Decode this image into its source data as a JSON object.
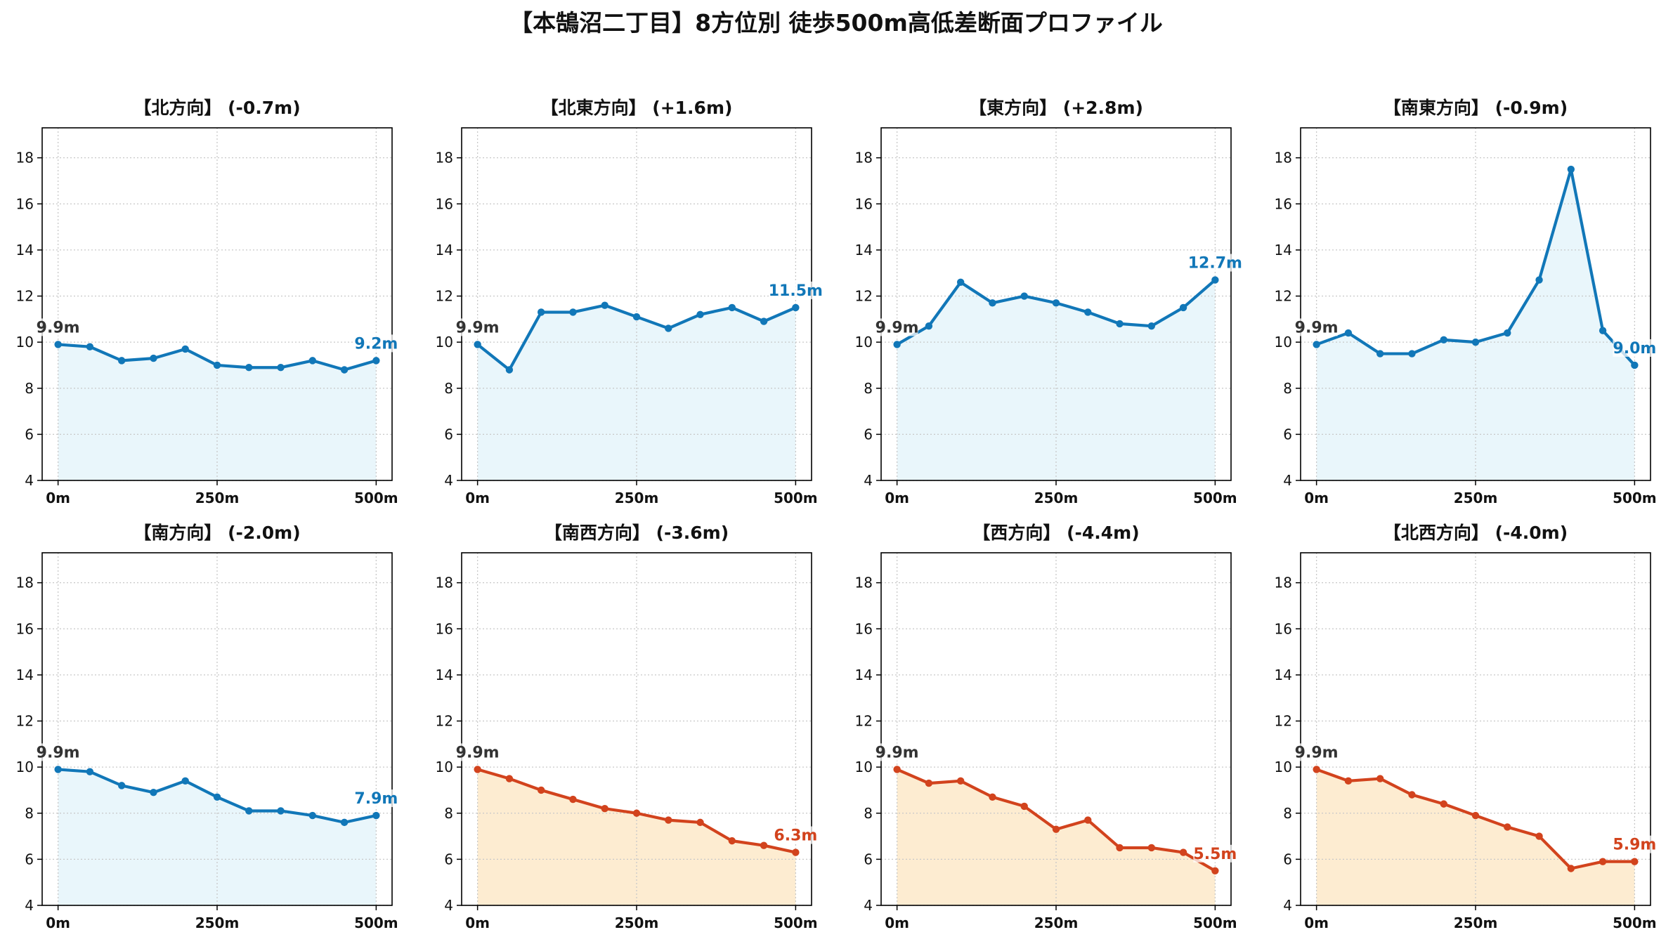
{
  "page_title": "【本鵠沼二丁目】8方位別 徒歩500m高低差断面プロファイル",
  "colors": {
    "up_line": "#1177b8",
    "up_fill": "#e9f6fb",
    "down_line": "#d2431d",
    "down_fill": "#fdecd1",
    "start_label": "#333333"
  },
  "chart_data": [
    {
      "type": "area",
      "title": "【北方向】 (-0.7m)",
      "trend": "up",
      "x": [
        0,
        50,
        100,
        150,
        200,
        250,
        300,
        350,
        400,
        450,
        500
      ],
      "values": [
        9.9,
        9.8,
        9.2,
        9.3,
        9.7,
        9.0,
        8.9,
        8.9,
        9.2,
        8.8,
        9.2
      ],
      "start_label": "9.9m",
      "end_label": "9.2m",
      "xticks": [
        "0m",
        "250m",
        "500m"
      ],
      "yticks": [
        4,
        6,
        8,
        10,
        12,
        14,
        16,
        18
      ],
      "xlim": [
        -25,
        525
      ],
      "ylim": [
        4,
        19.3
      ],
      "grid": true
    },
    {
      "type": "area",
      "title": "【北東方向】 (+1.6m)",
      "trend": "up",
      "x": [
        0,
        50,
        100,
        150,
        200,
        250,
        300,
        350,
        400,
        450,
        500
      ],
      "values": [
        9.9,
        8.8,
        11.3,
        11.3,
        11.6,
        11.1,
        10.6,
        11.2,
        11.5,
        10.9,
        11.5
      ],
      "start_label": "9.9m",
      "end_label": "11.5m",
      "xticks": [
        "0m",
        "250m",
        "500m"
      ],
      "yticks": [
        4,
        6,
        8,
        10,
        12,
        14,
        16,
        18
      ],
      "xlim": [
        -25,
        525
      ],
      "ylim": [
        4,
        19.3
      ],
      "grid": true
    },
    {
      "type": "area",
      "title": "【東方向】 (+2.8m)",
      "trend": "up",
      "x": [
        0,
        50,
        100,
        150,
        200,
        250,
        300,
        350,
        400,
        450,
        500
      ],
      "values": [
        9.9,
        10.7,
        12.6,
        11.7,
        12.0,
        11.7,
        11.3,
        10.8,
        10.7,
        11.5,
        12.7
      ],
      "start_label": "9.9m",
      "end_label": "12.7m",
      "xticks": [
        "0m",
        "250m",
        "500m"
      ],
      "yticks": [
        4,
        6,
        8,
        10,
        12,
        14,
        16,
        18
      ],
      "xlim": [
        -25,
        525
      ],
      "ylim": [
        4,
        19.3
      ],
      "grid": true
    },
    {
      "type": "area",
      "title": "【南東方向】 (-0.9m)",
      "trend": "up",
      "x": [
        0,
        50,
        100,
        150,
        200,
        250,
        300,
        350,
        400,
        450,
        500
      ],
      "values": [
        9.9,
        10.4,
        9.5,
        9.5,
        10.1,
        10.0,
        10.4,
        12.7,
        17.5,
        10.5,
        9.0
      ],
      "start_label": "9.9m",
      "end_label": "9.0m",
      "xticks": [
        "0m",
        "250m",
        "500m"
      ],
      "yticks": [
        4,
        6,
        8,
        10,
        12,
        14,
        16,
        18
      ],
      "xlim": [
        -25,
        525
      ],
      "ylim": [
        4,
        19.3
      ],
      "grid": true
    },
    {
      "type": "area",
      "title": "【南方向】 (-2.0m)",
      "trend": "up",
      "x": [
        0,
        50,
        100,
        150,
        200,
        250,
        300,
        350,
        400,
        450,
        500
      ],
      "values": [
        9.9,
        9.8,
        9.2,
        8.9,
        9.4,
        8.7,
        8.1,
        8.1,
        7.9,
        7.6,
        7.9
      ],
      "start_label": "9.9m",
      "end_label": "7.9m",
      "xticks": [
        "0m",
        "250m",
        "500m"
      ],
      "yticks": [
        4,
        6,
        8,
        10,
        12,
        14,
        16,
        18
      ],
      "xlim": [
        -25,
        525
      ],
      "ylim": [
        4,
        19.3
      ],
      "grid": true
    },
    {
      "type": "area",
      "title": "【南西方向】 (-3.6m)",
      "trend": "down",
      "x": [
        0,
        50,
        100,
        150,
        200,
        250,
        300,
        350,
        400,
        450,
        500
      ],
      "values": [
        9.9,
        9.5,
        9.0,
        8.6,
        8.2,
        8.0,
        7.7,
        7.6,
        6.8,
        6.6,
        6.3
      ],
      "start_label": "9.9m",
      "end_label": "6.3m",
      "xticks": [
        "0m",
        "250m",
        "500m"
      ],
      "yticks": [
        4,
        6,
        8,
        10,
        12,
        14,
        16,
        18
      ],
      "xlim": [
        -25,
        525
      ],
      "ylim": [
        4,
        19.3
      ],
      "grid": true
    },
    {
      "type": "area",
      "title": "【西方向】 (-4.4m)",
      "trend": "down",
      "x": [
        0,
        50,
        100,
        150,
        200,
        250,
        300,
        350,
        400,
        450,
        500
      ],
      "values": [
        9.9,
        9.3,
        9.4,
        8.7,
        8.3,
        7.3,
        7.7,
        6.5,
        6.5,
        6.3,
        5.5
      ],
      "start_label": "9.9m",
      "end_label": "5.5m",
      "xticks": [
        "0m",
        "250m",
        "500m"
      ],
      "yticks": [
        4,
        6,
        8,
        10,
        12,
        14,
        16,
        18
      ],
      "xlim": [
        -25,
        525
      ],
      "ylim": [
        4,
        19.3
      ],
      "grid": true
    },
    {
      "type": "area",
      "title": "【北西方向】 (-4.0m)",
      "trend": "down",
      "x": [
        0,
        50,
        100,
        150,
        200,
        250,
        300,
        350,
        400,
        450,
        500
      ],
      "values": [
        9.9,
        9.4,
        9.5,
        8.8,
        8.4,
        7.9,
        7.4,
        7.0,
        5.6,
        5.9,
        5.9
      ],
      "start_label": "9.9m",
      "end_label": "5.9m",
      "xticks": [
        "0m",
        "250m",
        "500m"
      ],
      "yticks": [
        4,
        6,
        8,
        10,
        12,
        14,
        16,
        18
      ],
      "xlim": [
        -25,
        525
      ],
      "ylim": [
        4,
        19.3
      ],
      "grid": true
    }
  ]
}
